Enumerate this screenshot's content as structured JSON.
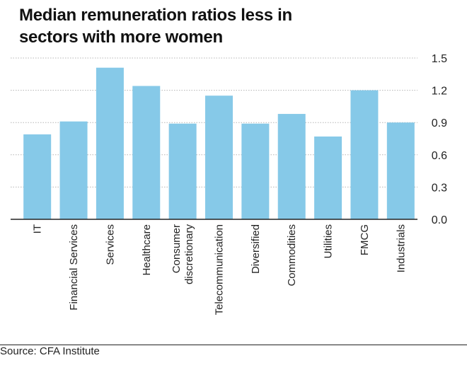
{
  "chart_data": {
    "type": "bar",
    "title": "Median remuneration ratios less in sectors with more women",
    "categories": [
      "IT",
      "Financial Services",
      "Services",
      "Healthcare",
      "Consumer discretionary",
      "Telecommunication",
      "Diversified",
      "Commodities",
      "Utilities",
      "FMCG",
      "Industrials"
    ],
    "category_lines": [
      [
        "IT"
      ],
      [
        "Financial Services"
      ],
      [
        "Services"
      ],
      [
        "Healthcare"
      ],
      [
        "Consumer",
        "discretionary"
      ],
      [
        "Telecommunication"
      ],
      [
        "Diversified"
      ],
      [
        "Commodities"
      ],
      [
        "Utilities"
      ],
      [
        "FMCG"
      ],
      [
        "Industrials"
      ]
    ],
    "values": [
      0.79,
      0.91,
      1.41,
      1.24,
      0.89,
      1.15,
      0.89,
      0.98,
      0.77,
      1.2,
      0.9
    ],
    "ylim": [
      0,
      1.5
    ],
    "yticks": [
      "0.0",
      "0.3",
      "0.6",
      "0.9",
      "1.2",
      "1.5"
    ],
    "ytick_values": [
      0,
      0.3,
      0.6,
      0.9,
      1.2,
      1.5
    ],
    "xlabel": "",
    "ylabel": "",
    "grid": true,
    "y_axis_position": "right",
    "bar_color": "#86c9e8"
  },
  "source": "Source: CFA Institute"
}
